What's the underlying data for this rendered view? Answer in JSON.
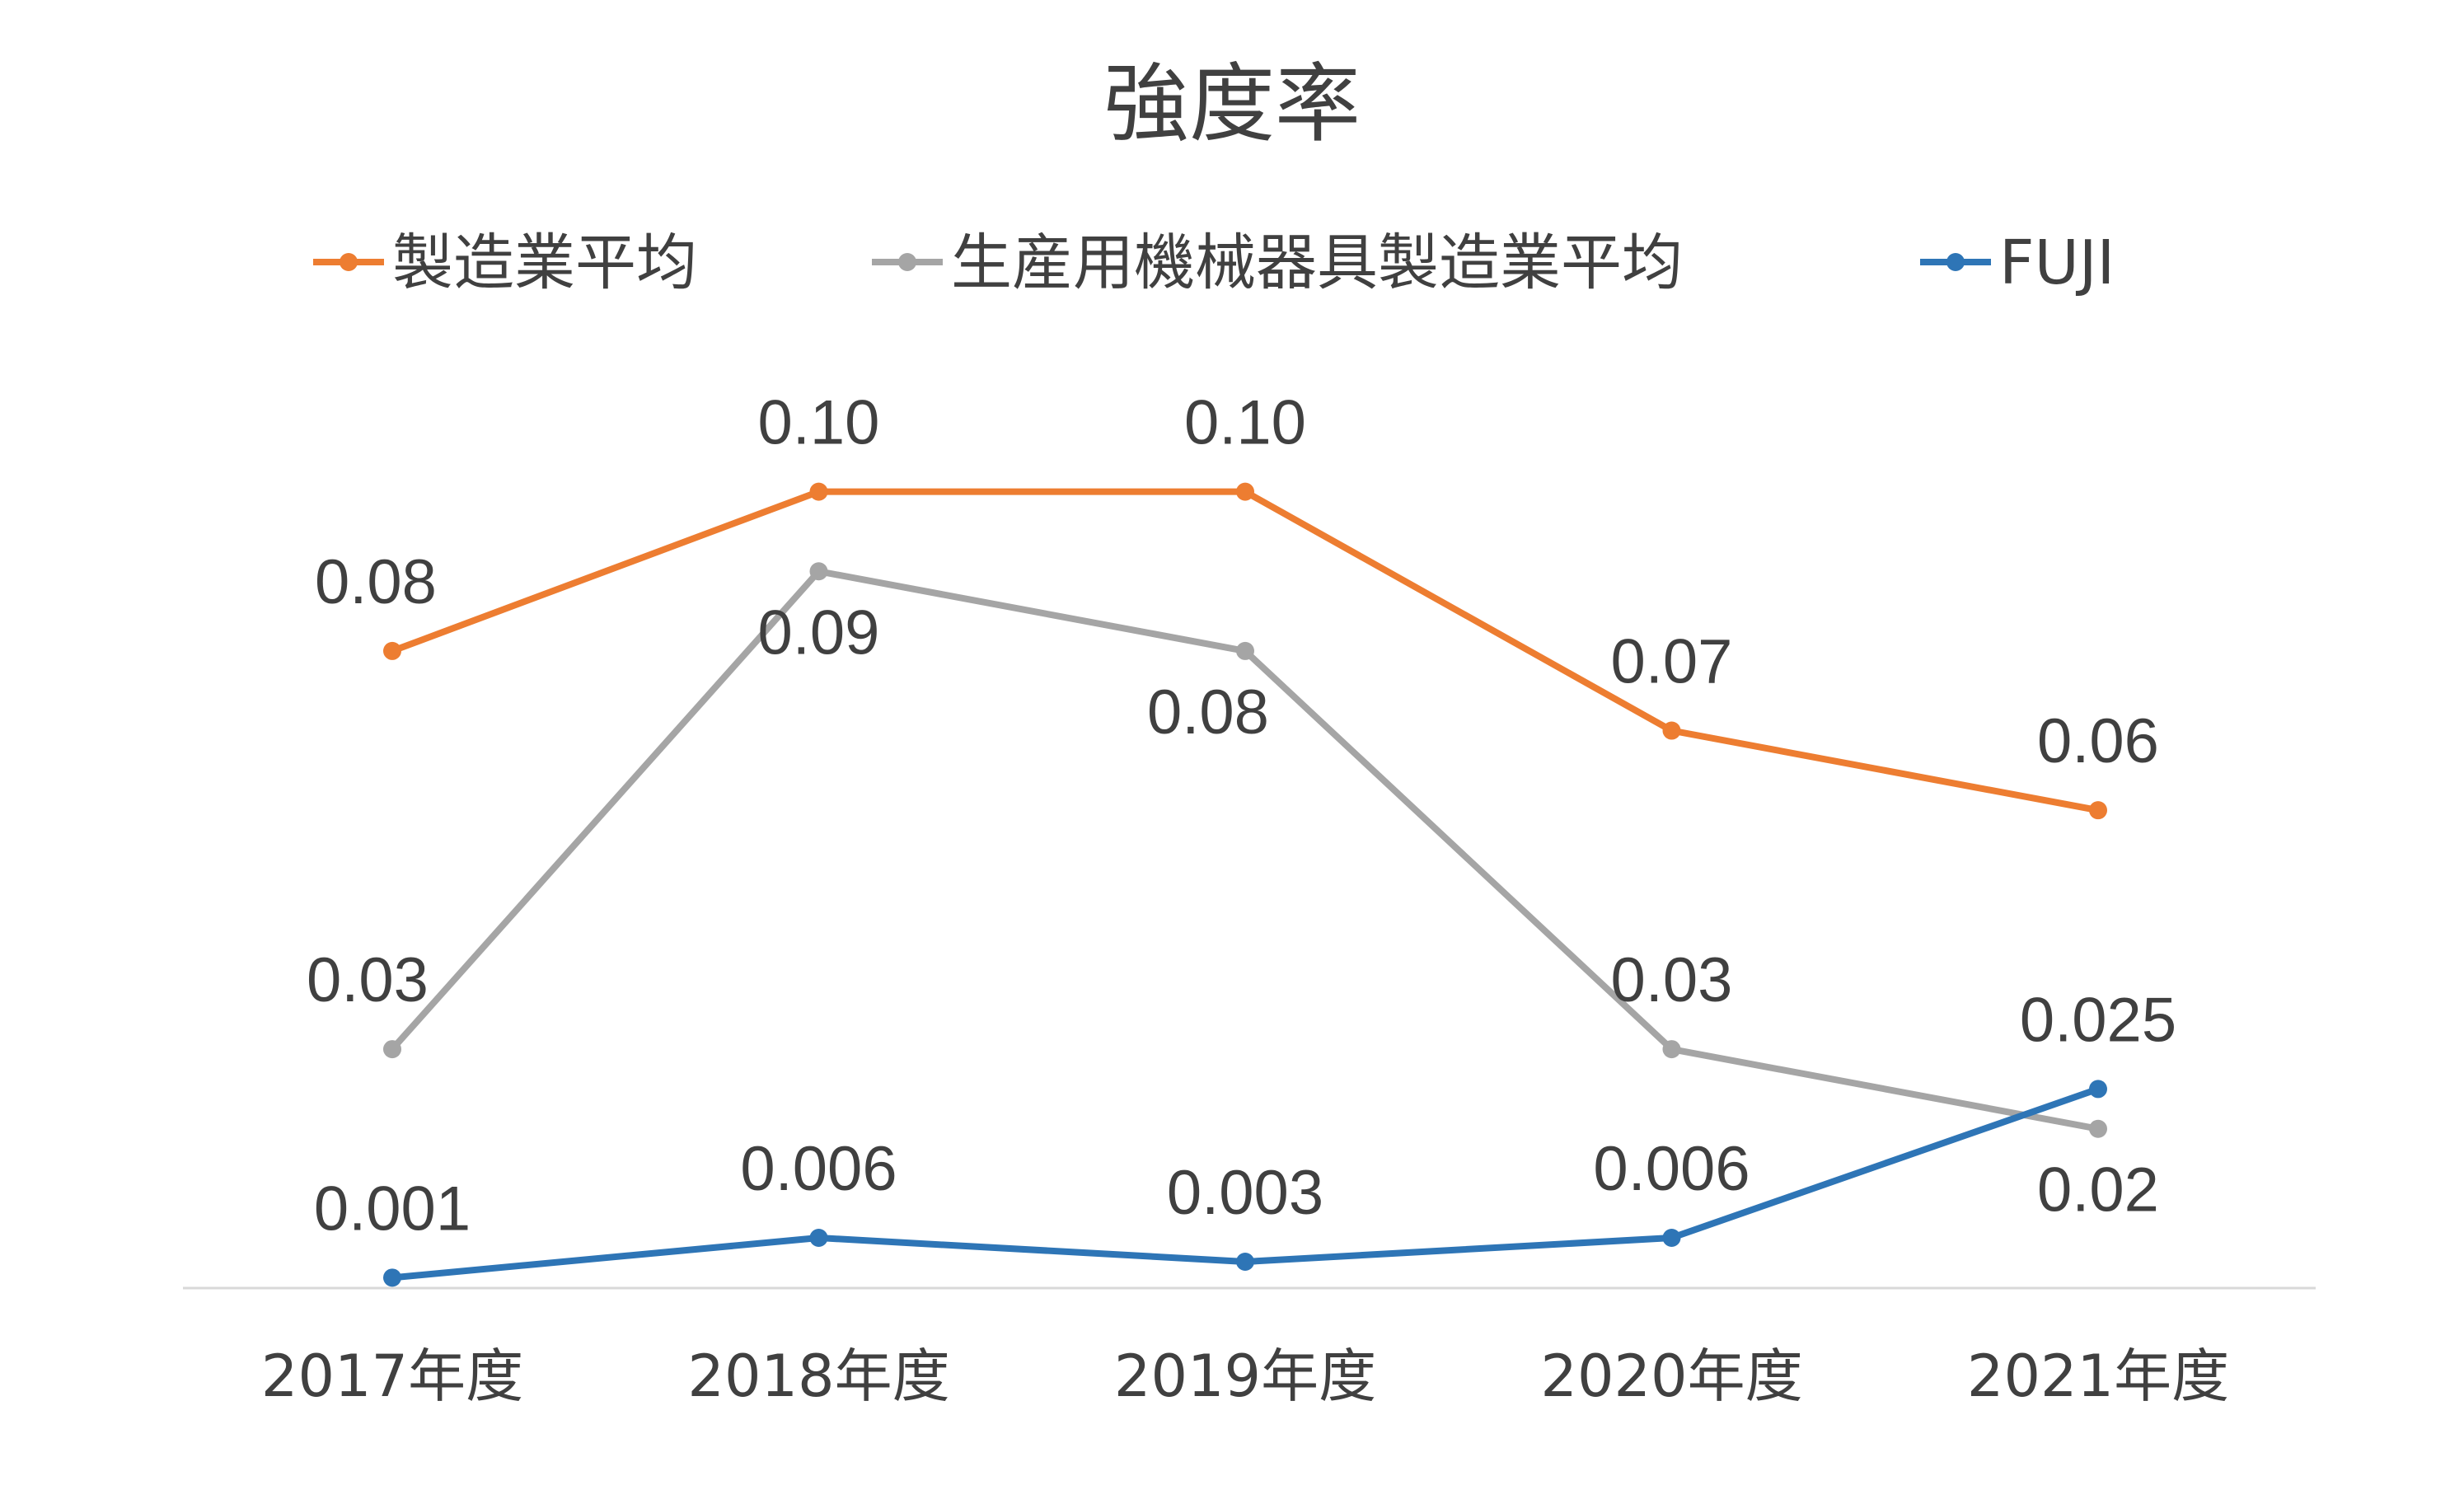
{
  "chart_data": {
    "type": "line",
    "title": "強度率",
    "categories": [
      "2017年度",
      "2018年度",
      "2019年度",
      "2020年度",
      "2021年度"
    ],
    "series": [
      {
        "name": "製造業平均",
        "color": "#ED7D31",
        "values": [
          0.08,
          0.1,
          0.1,
          0.07,
          0.06
        ],
        "labels": [
          "0.08",
          "0.10",
          "0.10",
          "0.07",
          "0.06"
        ]
      },
      {
        "name": "生産用機械器具製造業平均",
        "color": "#A5A5A5",
        "values": [
          0.03,
          0.09,
          0.08,
          0.03,
          0.02
        ],
        "labels": [
          "0.03",
          "0.09",
          "0.08",
          "0.03",
          "0.02"
        ]
      },
      {
        "name": "FUJI",
        "color": "#2E75B6",
        "values": [
          0.001,
          0.006,
          0.003,
          0.006,
          0.025
        ],
        "labels": [
          "0.001",
          "0.006",
          "0.003",
          "0.006",
          "0.025"
        ]
      }
    ],
    "ylim": [
      0,
      0.11
    ],
    "xlabel": "",
    "ylabel": "",
    "grid": false,
    "legend_position": "top"
  }
}
